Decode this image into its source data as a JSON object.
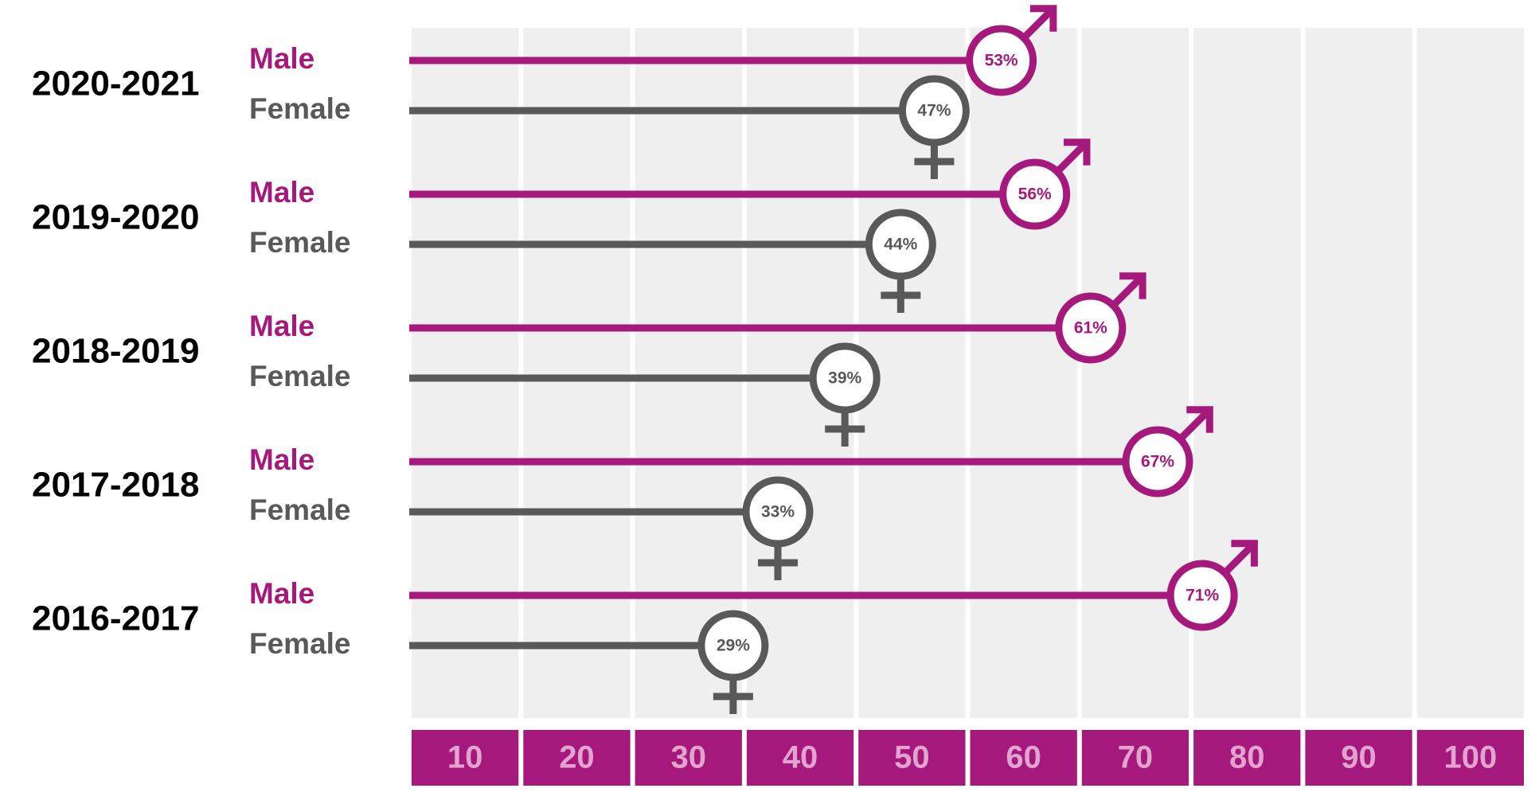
{
  "chart_data": {
    "type": "lollipop",
    "categories": [
      "2020-2021",
      "2019-2020",
      "2018-2019",
      "2017-2018",
      "2016-2017"
    ],
    "series": [
      {
        "name": "Male",
        "color": "#a4197b",
        "values": [
          53,
          56,
          61,
          67,
          71
        ],
        "value_labels": [
          "53%",
          "56%",
          "61%",
          "67%",
          "71%"
        ]
      },
      {
        "name": "Female",
        "color": "#595959",
        "values": [
          47,
          44,
          39,
          33,
          29
        ],
        "value_labels": [
          "47%",
          "44%",
          "39%",
          "33%",
          "29%"
        ]
      }
    ],
    "xlim": [
      0,
      100
    ],
    "xticks": [
      10,
      20,
      30,
      40,
      50,
      60,
      70,
      80,
      90,
      100
    ]
  }
}
